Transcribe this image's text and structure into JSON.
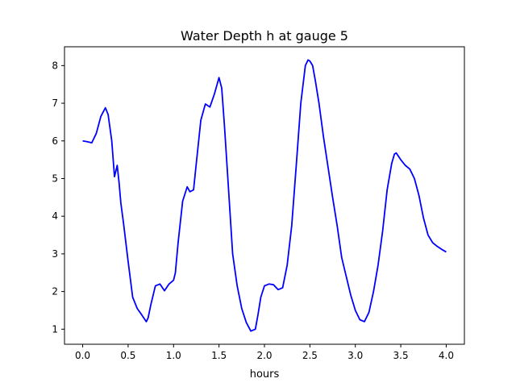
{
  "chart_data": {
    "type": "line",
    "title": "Water Depth h at gauge 5",
    "xlabel": "hours",
    "ylabel": "",
    "xlim": [
      -0.2,
      4.2
    ],
    "ylim": [
      0.6,
      8.5
    ],
    "xticks": [
      0.0,
      0.5,
      1.0,
      1.5,
      2.0,
      2.5,
      3.0,
      3.5,
      4.0
    ],
    "xtick_labels": [
      "0.0",
      "0.5",
      "1.0",
      "1.5",
      "2.0",
      "2.5",
      "3.0",
      "3.5",
      "4.0"
    ],
    "yticks": [
      1,
      2,
      3,
      4,
      5,
      6,
      7,
      8
    ],
    "ytick_labels": [
      "1",
      "2",
      "3",
      "4",
      "5",
      "6",
      "7",
      "8"
    ],
    "grid": false,
    "legend": "none",
    "series": [
      {
        "color": "#0000ff",
        "x": [
          0.0,
          0.05,
          0.1,
          0.15,
          0.2,
          0.25,
          0.28,
          0.32,
          0.35,
          0.38,
          0.4,
          0.42,
          0.45,
          0.5,
          0.55,
          0.6,
          0.65,
          0.7,
          0.72,
          0.75,
          0.8,
          0.85,
          0.9,
          0.95,
          1.0,
          1.02,
          1.05,
          1.1,
          1.15,
          1.18,
          1.22,
          1.25,
          1.3,
          1.35,
          1.4,
          1.45,
          1.5,
          1.53,
          1.56,
          1.6,
          1.65,
          1.7,
          1.75,
          1.8,
          1.85,
          1.9,
          1.93,
          1.96,
          2.0,
          2.05,
          2.1,
          2.15,
          2.2,
          2.25,
          2.3,
          2.35,
          2.4,
          2.45,
          2.48,
          2.5,
          2.53,
          2.56,
          2.6,
          2.65,
          2.7,
          2.75,
          2.8,
          2.85,
          2.9,
          2.95,
          3.0,
          3.05,
          3.1,
          3.15,
          3.2,
          3.25,
          3.3,
          3.35,
          3.4,
          3.43,
          3.45,
          3.5,
          3.55,
          3.6,
          3.65,
          3.7,
          3.75,
          3.8,
          3.85,
          3.9,
          3.95,
          4.0
        ],
        "y": [
          6.0,
          5.98,
          5.95,
          6.2,
          6.65,
          6.88,
          6.7,
          6.0,
          5.05,
          5.35,
          4.9,
          4.35,
          3.8,
          2.8,
          1.85,
          1.55,
          1.38,
          1.2,
          1.3,
          1.65,
          2.15,
          2.2,
          2.02,
          2.2,
          2.3,
          2.5,
          3.3,
          4.4,
          4.78,
          4.65,
          4.7,
          5.4,
          6.55,
          6.98,
          6.9,
          7.25,
          7.68,
          7.4,
          6.4,
          4.9,
          3.0,
          2.15,
          1.55,
          1.18,
          0.95,
          1.0,
          1.4,
          1.85,
          2.15,
          2.2,
          2.18,
          2.05,
          2.1,
          2.7,
          3.75,
          5.35,
          7.0,
          8.0,
          8.15,
          8.12,
          8.0,
          7.6,
          7.0,
          6.1,
          5.3,
          4.5,
          3.75,
          2.9,
          2.4,
          1.9,
          1.5,
          1.25,
          1.2,
          1.45,
          2.0,
          2.7,
          3.6,
          4.7,
          5.4,
          5.65,
          5.68,
          5.5,
          5.35,
          5.25,
          5.0,
          4.55,
          3.95,
          3.5,
          3.3,
          3.2,
          3.12,
          3.05
        ]
      }
    ]
  }
}
